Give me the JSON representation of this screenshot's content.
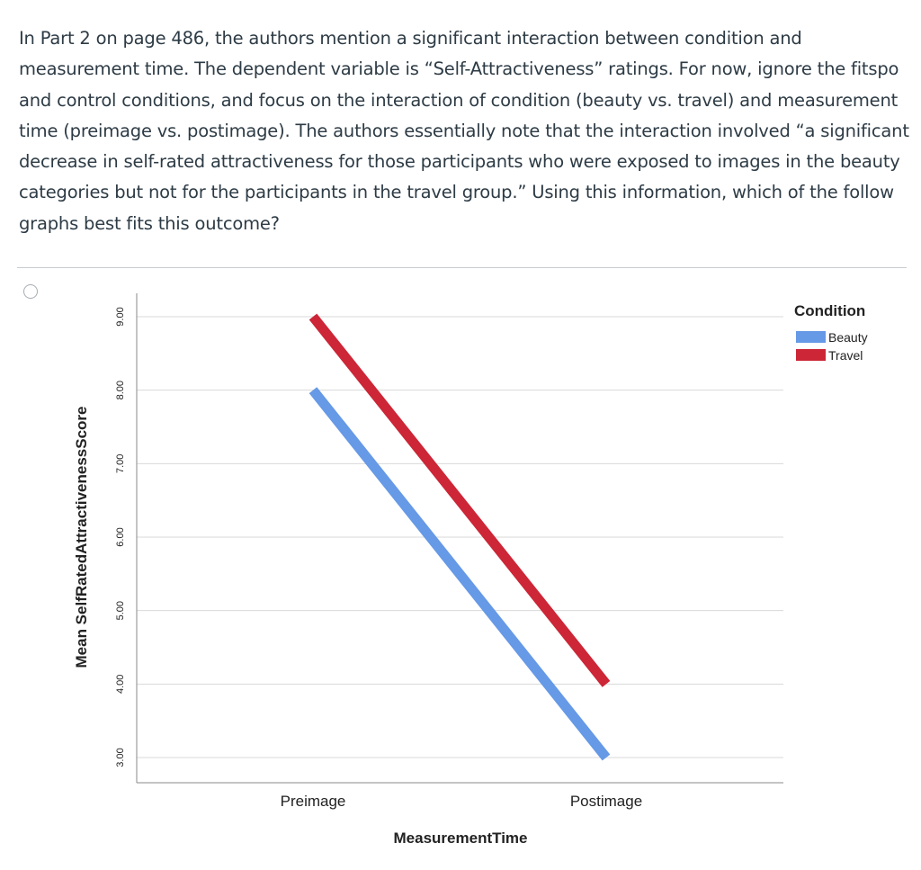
{
  "question": {
    "text": "In Part 2 on page 486, the authors mention a significant interaction between condition and measurement time. The dependent variable is “Self-Attractiveness” ratings. For now, ignore the fitspo and control conditions, and focus on the interaction of condition (beauty vs. travel) and measurement time (preimage vs. postimage). The authors essentially note that the interaction involved “a significant decrease in self-rated attractiveness for those participants who were exposed to images in the beauty categories but not for the participants in the travel group.” Using this information, which of the follow graphs best fits this outcome?"
  },
  "answer_option": {
    "selected": false
  },
  "chart_data": {
    "type": "line",
    "categories": [
      "Preimage",
      "Postimage"
    ],
    "series": [
      {
        "name": "Beauty",
        "color": "#6699e6",
        "values": [
          8.0,
          3.0
        ]
      },
      {
        "name": "Travel",
        "color": "#cc2637",
        "values": [
          9.0,
          4.0
        ]
      }
    ],
    "xlabel": "MeasurementTime",
    "ylabel": "Mean SelfRatedAttractivenessScore",
    "yticks": [
      "3.00",
      "4.00",
      "5.00",
      "6.00",
      "7.00",
      "8.00",
      "9.00"
    ],
    "ylim": [
      3,
      9
    ],
    "legend_title": "Condition",
    "legend_position": "top-right",
    "grid": true
  }
}
